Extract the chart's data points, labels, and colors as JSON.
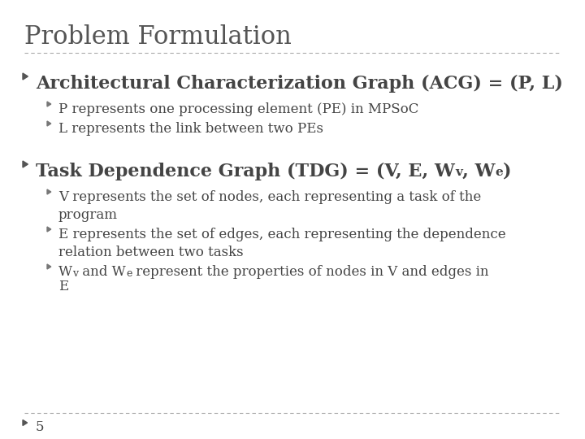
{
  "title": "Problem Formulation",
  "title_fontsize": 22,
  "title_color": "#555555",
  "background_color": "#ffffff",
  "separator_color": "#aaaaaa",
  "text_color": "#444444",
  "slide_number": "5",
  "l1_fontsize": 16,
  "l2_fontsize": 12,
  "bullet1_color": "#555555",
  "bullet2_color": "#777777"
}
